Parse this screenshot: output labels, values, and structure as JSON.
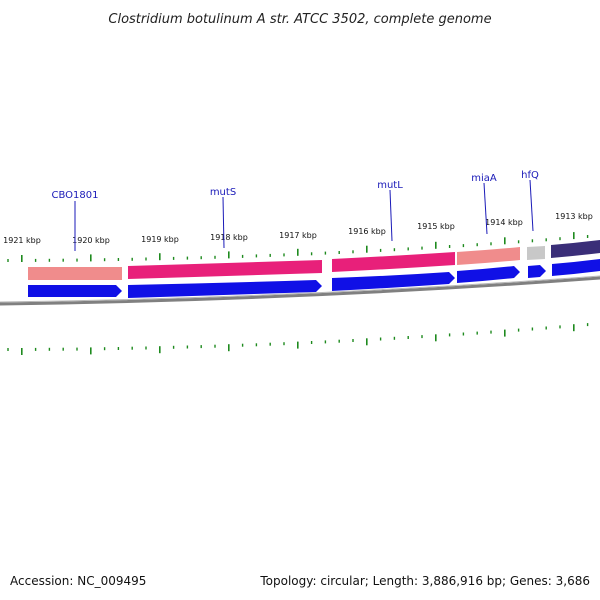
{
  "title": "Clostridium botulinum A str. ATCC 3502, complete genome",
  "footer": {
    "accession": "Accession: NC_009495",
    "summary": "Topology: circular; Length: 3,886,916 bp; Genes: 3,686"
  },
  "ruler": {
    "labels": [
      "1921 kbp",
      "1920 kbp",
      "1919 kbp",
      "1918 kbp",
      "1917 kbp",
      "1916 kbp",
      "1915 kbp",
      "1914 kbp",
      "1913 kbp"
    ]
  },
  "genes": [
    "CBO1801",
    "mutS",
    "mutL",
    "miaA",
    "hfQ"
  ],
  "colors": {
    "salmon": "#f08c8c",
    "magenta": "#e8207a",
    "blue": "#1010e6",
    "gray": "#c8c8c8",
    "navy": "#3a2e78",
    "tick": "#1e8a1e",
    "label": "#1a1ab8",
    "backbone": "#808080"
  }
}
